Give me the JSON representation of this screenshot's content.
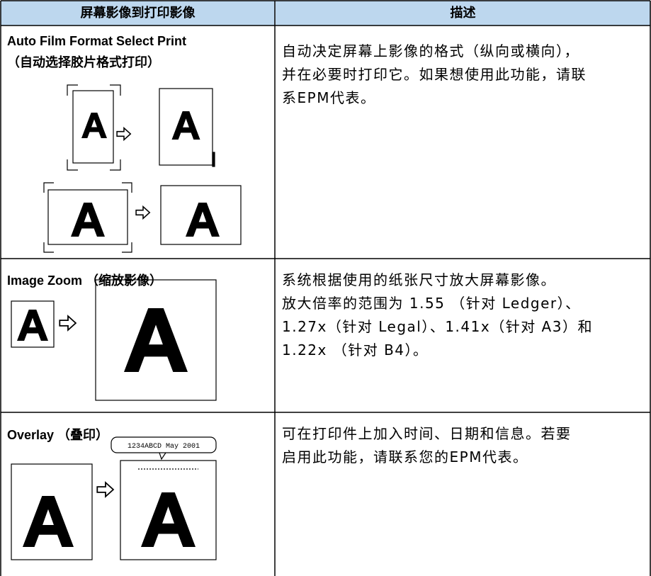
{
  "header": {
    "col1": "屏幕影像到打印影像",
    "col2": "描述"
  },
  "rows": [
    {
      "title": "Auto Film Format Select Print",
      "subtitle": "（自动选择胶片格式打印）",
      "description": [
        "自动决定屏幕上影像的格式（纵向或横向），",
        "并在必要时打印它。如果想使用此功能，请联",
        "系EPM代表。"
      ]
    },
    {
      "title": "Image Zoom （缩放影像）",
      "description": [
        "系统根据使用的纸张尺寸放大屏幕影像。",
        "放大倍率的范围为 1.55 （针对 Ledger）、",
        "1.27x（针对 Legal）、1.41x（针对 A3）和",
        "1.22x （针对 B4）。"
      ]
    },
    {
      "title": "Overlay （叠印）",
      "overlay_text": "1234ABCD May 2001",
      "description": [
        "可在打印件上加入时间、日期和信息。若要",
        "启用此功能，请联系您的EPM代表。"
      ]
    }
  ]
}
